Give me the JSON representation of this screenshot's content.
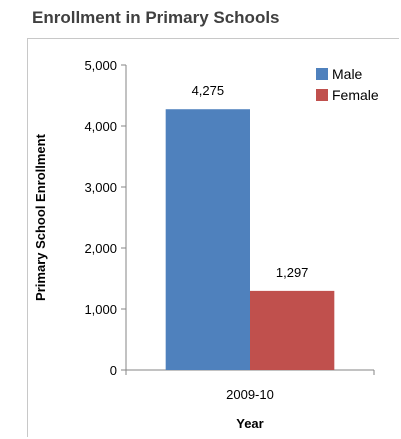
{
  "title": "Enrollment in Primary Schools",
  "chart_data": {
    "type": "bar",
    "categories": [
      "2009-10"
    ],
    "series": [
      {
        "name": "Male",
        "values": [
          4275
        ],
        "color": "#4f81bd",
        "label": "4,275"
      },
      {
        "name": "Female",
        "values": [
          1297
        ],
        "color": "#c0504d",
        "label": "1,297"
      }
    ],
    "xlabel": "Year",
    "ylabel": "Primary School Enrollment",
    "ylim": [
      0,
      5000
    ],
    "yticks": [
      {
        "value": 0,
        "label": "0"
      },
      {
        "value": 1000,
        "label": "1,000"
      },
      {
        "value": 2000,
        "label": "2,000"
      },
      {
        "value": 3000,
        "label": "3,000"
      },
      {
        "value": 4000,
        "label": "4,000"
      },
      {
        "value": 5000,
        "label": "5,000"
      }
    ],
    "grid": false,
    "legend": "top-right"
  }
}
